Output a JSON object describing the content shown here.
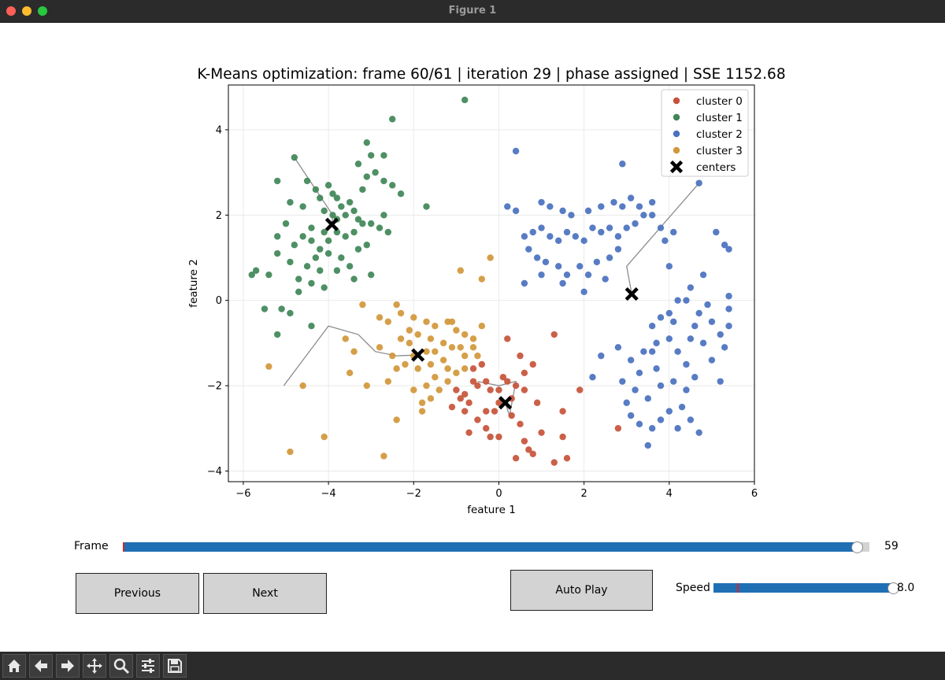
{
  "window": {
    "title": "Figure 1",
    "traffic_lights": {
      "close": "#ff5f57",
      "minimize": "#febc2e",
      "zoom": "#28c840"
    }
  },
  "chart_data": {
    "type": "scatter",
    "title": "K-Means optimization: frame 60/61 | iteration 29 | phase assigned | SSE 1152.68",
    "xlabel": "feature 1",
    "ylabel": "feature 2",
    "xlim": [
      -6.35,
      6.0
    ],
    "ylim": [
      -4.25,
      5.05
    ],
    "xticks": [
      -6,
      -4,
      -2,
      0,
      2,
      4,
      6
    ],
    "yticks": [
      -4,
      -2,
      0,
      2,
      4
    ],
    "grid": true,
    "legend_position": "top-right",
    "series": [
      {
        "name": "cluster 0",
        "color": "#c7523a",
        "points": [
          [
            0.2,
            -0.9
          ],
          [
            0.6,
            -1.7
          ],
          [
            0.8,
            -1.5
          ],
          [
            -0.4,
            -1.5
          ],
          [
            -0.6,
            -1.6
          ],
          [
            -0.3,
            -1.9
          ],
          [
            0.0,
            -2.1
          ],
          [
            0.2,
            -1.9
          ],
          [
            0.4,
            -2.0
          ],
          [
            -0.8,
            -2.2
          ],
          [
            -0.7,
            -2.4
          ],
          [
            -0.8,
            -2.6
          ],
          [
            -1.1,
            -2.5
          ],
          [
            -0.5,
            -2.8
          ],
          [
            -0.3,
            -3.0
          ],
          [
            -0.7,
            -3.1
          ],
          [
            -0.2,
            -3.2
          ],
          [
            0.0,
            -3.2
          ],
          [
            0.3,
            -2.7
          ],
          [
            0.5,
            -2.9
          ],
          [
            0.6,
            -3.3
          ],
          [
            0.7,
            -3.5
          ],
          [
            0.4,
            -3.7
          ],
          [
            0.8,
            -3.6
          ],
          [
            1.0,
            -3.1
          ],
          [
            1.3,
            -3.8
          ],
          [
            1.5,
            -3.2
          ],
          [
            1.6,
            -3.7
          ],
          [
            1.5,
            -2.6
          ],
          [
            1.3,
            -0.8
          ],
          [
            0.9,
            -2.4
          ],
          [
            0.6,
            -2.1
          ],
          [
            0.3,
            -2.3
          ],
          [
            -0.1,
            -2.6
          ],
          [
            -0.9,
            -2.3
          ],
          [
            -0.2,
            -2.1
          ],
          [
            0.1,
            -1.8
          ],
          [
            -0.5,
            -2.0
          ],
          [
            -1.0,
            -2.1
          ],
          [
            1.9,
            -2.1
          ],
          [
            2.8,
            -3.0
          ],
          [
            0.5,
            -1.3
          ],
          [
            0.0,
            -2.4
          ],
          [
            -0.3,
            -2.6
          ],
          [
            -0.6,
            -1.9
          ]
        ]
      },
      {
        "name": "cluster 1",
        "color": "#3f8757",
        "points": [
          [
            -0.8,
            4.7
          ],
          [
            -2.5,
            4.25
          ],
          [
            -2.7,
            3.4
          ],
          [
            -3.1,
            3.7
          ],
          [
            -3.0,
            3.4
          ],
          [
            -3.3,
            3.2
          ],
          [
            -3.1,
            2.9
          ],
          [
            -2.9,
            3.0
          ],
          [
            -2.7,
            2.8
          ],
          [
            -2.5,
            2.7
          ],
          [
            -2.3,
            2.5
          ],
          [
            -3.2,
            2.6
          ],
          [
            -4.8,
            3.35
          ],
          [
            -4.5,
            2.8
          ],
          [
            -4.3,
            2.6
          ],
          [
            -4.0,
            2.7
          ],
          [
            -3.8,
            2.4
          ],
          [
            -4.2,
            2.4
          ],
          [
            -4.1,
            2.1
          ],
          [
            -3.9,
            2.0
          ],
          [
            -3.7,
            2.2
          ],
          [
            -3.4,
            2.1
          ],
          [
            -3.6,
            2.0
          ],
          [
            -5.2,
            2.8
          ],
          [
            -4.9,
            2.3
          ],
          [
            -4.6,
            2.2
          ],
          [
            -5.0,
            1.8
          ],
          [
            -5.2,
            1.5
          ],
          [
            -4.8,
            1.3
          ],
          [
            -4.6,
            1.5
          ],
          [
            -4.4,
            1.4
          ],
          [
            -4.2,
            1.2
          ],
          [
            -4.0,
            1.4
          ],
          [
            -3.8,
            1.6
          ],
          [
            -3.6,
            1.5
          ],
          [
            -3.4,
            1.6
          ],
          [
            -3.2,
            1.8
          ],
          [
            -3.0,
            1.8
          ],
          [
            -2.8,
            1.7
          ],
          [
            -2.7,
            2.0
          ],
          [
            -2.6,
            1.6
          ],
          [
            -3.1,
            1.3
          ],
          [
            -3.3,
            1.2
          ],
          [
            -3.7,
            1.0
          ],
          [
            -4.0,
            1.1
          ],
          [
            -4.3,
            1.0
          ],
          [
            -4.5,
            0.8
          ],
          [
            -4.7,
            0.5
          ],
          [
            -4.2,
            0.7
          ],
          [
            -4.1,
            0.3
          ],
          [
            -3.8,
            0.7
          ],
          [
            -3.5,
            0.8
          ],
          [
            -3.4,
            0.5
          ],
          [
            -3.0,
            0.6
          ],
          [
            -4.4,
            0.4
          ],
          [
            -4.7,
            0.2
          ],
          [
            -4.9,
            0.9
          ],
          [
            -5.2,
            1.1
          ],
          [
            -5.4,
            0.6
          ],
          [
            -5.8,
            0.6
          ],
          [
            -5.7,
            0.7
          ],
          [
            -5.5,
            -0.2
          ],
          [
            -5.1,
            -0.2
          ],
          [
            -4.9,
            -0.3
          ],
          [
            -4.4,
            -0.6
          ],
          [
            -5.2,
            -0.8
          ],
          [
            -1.7,
            2.2
          ],
          [
            -3.5,
            2.3
          ],
          [
            -3.8,
            1.9
          ],
          [
            -4.1,
            1.6
          ],
          [
            -3.9,
            2.5
          ],
          [
            -4.4,
            1.7
          ],
          [
            -3.3,
            1.9
          ]
        ]
      },
      {
        "name": "cluster 2",
        "color": "#4a71bf",
        "points": [
          [
            0.4,
            3.5
          ],
          [
            2.9,
            3.2
          ],
          [
            0.2,
            2.2
          ],
          [
            0.4,
            2.1
          ],
          [
            1.0,
            2.3
          ],
          [
            1.2,
            2.2
          ],
          [
            1.5,
            2.1
          ],
          [
            1.7,
            2.0
          ],
          [
            2.1,
            2.1
          ],
          [
            2.4,
            2.2
          ],
          [
            2.7,
            2.3
          ],
          [
            2.9,
            2.2
          ],
          [
            3.1,
            2.4
          ],
          [
            3.3,
            2.2
          ],
          [
            3.6,
            2.3
          ],
          [
            3.4,
            2.0
          ],
          [
            3.6,
            2.0
          ],
          [
            3.2,
            1.8
          ],
          [
            3.0,
            1.7
          ],
          [
            2.8,
            1.5
          ],
          [
            2.6,
            1.7
          ],
          [
            2.4,
            1.6
          ],
          [
            2.2,
            1.7
          ],
          [
            2.0,
            1.4
          ],
          [
            1.8,
            1.5
          ],
          [
            1.6,
            1.6
          ],
          [
            1.4,
            1.4
          ],
          [
            1.2,
            1.5
          ],
          [
            1.0,
            1.7
          ],
          [
            0.8,
            1.6
          ],
          [
            0.6,
            1.5
          ],
          [
            0.7,
            1.2
          ],
          [
            0.9,
            1.0
          ],
          [
            1.1,
            0.9
          ],
          [
            1.4,
            0.8
          ],
          [
            1.6,
            0.6
          ],
          [
            1.9,
            0.8
          ],
          [
            2.1,
            0.6
          ],
          [
            2.3,
            0.9
          ],
          [
            2.6,
            1.0
          ],
          [
            2.8,
            1.2
          ],
          [
            2.5,
            0.5
          ],
          [
            2.0,
            0.2
          ],
          [
            1.5,
            0.4
          ],
          [
            1.0,
            0.6
          ],
          [
            0.6,
            0.4
          ],
          [
            3.8,
            1.7
          ],
          [
            3.9,
            1.4
          ],
          [
            4.1,
            1.6
          ],
          [
            4.0,
            0.8
          ],
          [
            4.7,
            2.75
          ],
          [
            5.1,
            1.6
          ],
          [
            5.3,
            1.3
          ],
          [
            5.4,
            1.2
          ],
          [
            4.8,
            0.6
          ],
          [
            4.5,
            0.3
          ],
          [
            4.2,
            0.0
          ],
          [
            4.0,
            -0.3
          ],
          [
            3.8,
            -0.4
          ],
          [
            3.6,
            -0.6
          ],
          [
            4.4,
            0.0
          ],
          [
            4.7,
            -0.3
          ],
          [
            5.0,
            -0.5
          ],
          [
            5.2,
            -0.8
          ],
          [
            5.4,
            -0.6
          ],
          [
            5.3,
            -1.1
          ],
          [
            4.8,
            -1.0
          ],
          [
            4.5,
            -0.9
          ],
          [
            4.2,
            -1.2
          ],
          [
            4.0,
            -0.9
          ],
          [
            3.7,
            -1.0
          ],
          [
            3.4,
            -1.2
          ],
          [
            3.1,
            -1.4
          ],
          [
            2.8,
            -1.1
          ],
          [
            2.4,
            -1.3
          ],
          [
            2.2,
            -1.8
          ],
          [
            2.9,
            -1.9
          ],
          [
            3.2,
            -2.1
          ],
          [
            3.5,
            -2.3
          ],
          [
            3.8,
            -2.0
          ],
          [
            4.1,
            -1.9
          ],
          [
            4.4,
            -2.1
          ],
          [
            4.6,
            -1.8
          ],
          [
            4.3,
            -2.5
          ],
          [
            4.5,
            -2.8
          ],
          [
            4.2,
            -3.0
          ],
          [
            4.0,
            -2.6
          ],
          [
            3.8,
            -2.8
          ],
          [
            3.6,
            -3.0
          ],
          [
            3.3,
            -2.9
          ],
          [
            3.1,
            -2.7
          ],
          [
            3.0,
            -2.4
          ],
          [
            4.7,
            -3.1
          ],
          [
            5.2,
            -1.9
          ],
          [
            5.0,
            -1.4
          ],
          [
            3.3,
            -1.7
          ],
          [
            3.7,
            -1.6
          ],
          [
            4.4,
            -1.5
          ],
          [
            3.5,
            -3.4
          ],
          [
            5.4,
            0.1
          ],
          [
            5.4,
            -0.2
          ],
          [
            4.9,
            -0.1
          ],
          [
            4.6,
            -0.6
          ],
          [
            3.6,
            -1.2
          ],
          [
            4.1,
            -0.5
          ]
        ]
      },
      {
        "name": "cluster 3",
        "color": "#d1973a",
        "points": [
          [
            -0.2,
            1.0
          ],
          [
            -0.9,
            0.7
          ],
          [
            -0.4,
            0.5
          ],
          [
            -3.2,
            -0.1
          ],
          [
            -2.4,
            -0.1
          ],
          [
            -2.3,
            -0.3
          ],
          [
            -2.0,
            -0.4
          ],
          [
            -1.7,
            -0.5
          ],
          [
            -1.5,
            -0.6
          ],
          [
            -1.2,
            -0.5
          ],
          [
            -1.0,
            -0.7
          ],
          [
            -0.8,
            -0.8
          ],
          [
            -0.6,
            -0.9
          ],
          [
            -0.4,
            -0.6
          ],
          [
            -2.8,
            -0.4
          ],
          [
            -2.6,
            -0.5
          ],
          [
            -2.3,
            -0.9
          ],
          [
            -2.1,
            -1.0
          ],
          [
            -1.9,
            -0.8
          ],
          [
            -1.6,
            -0.9
          ],
          [
            -1.3,
            -1.0
          ],
          [
            -1.1,
            -1.1
          ],
          [
            -0.8,
            -1.3
          ],
          [
            -0.5,
            -1.3
          ],
          [
            -2.8,
            -1.1
          ],
          [
            -2.5,
            -1.3
          ],
          [
            -2.2,
            -1.5
          ],
          [
            -1.9,
            -1.6
          ],
          [
            -1.6,
            -1.5
          ],
          [
            -1.3,
            -1.4
          ],
          [
            -1.0,
            -1.7
          ],
          [
            -0.8,
            -1.6
          ],
          [
            -1.5,
            -1.8
          ],
          [
            -1.7,
            -2.0
          ],
          [
            -2.0,
            -2.1
          ],
          [
            -1.4,
            -2.1
          ],
          [
            -1.2,
            -1.9
          ],
          [
            -1.8,
            -2.4
          ],
          [
            -1.6,
            -2.3
          ],
          [
            -1.8,
            -2.6
          ],
          [
            -2.4,
            -2.8
          ],
          [
            -3.6,
            -0.9
          ],
          [
            -3.4,
            -1.2
          ],
          [
            -3.5,
            -1.7
          ],
          [
            -3.1,
            -2.0
          ],
          [
            -4.1,
            -3.2
          ],
          [
            -4.9,
            -3.55
          ],
          [
            -2.7,
            -3.65
          ],
          [
            -4.6,
            -2.0
          ],
          [
            -5.4,
            -1.55
          ],
          [
            -2.0,
            -1.3
          ],
          [
            -1.7,
            -1.2
          ],
          [
            -2.4,
            -1.6
          ],
          [
            -0.9,
            -1.1
          ],
          [
            -1.5,
            -1.2
          ],
          [
            -1.2,
            -1.6
          ],
          [
            -2.6,
            -1.9
          ],
          [
            -1.1,
            -0.5
          ],
          [
            -0.6,
            -1.1
          ],
          [
            -2.1,
            -0.7
          ]
        ]
      }
    ],
    "centers": {
      "name": "centers",
      "color": "#000000",
      "points": [
        [
          -3.92,
          1.78
        ],
        [
          3.12,
          0.15
        ],
        [
          -1.9,
          -1.28
        ],
        [
          0.15,
          -2.4
        ]
      ]
    },
    "center_paths": [
      [
        [
          -4.8,
          3.35
        ],
        [
          -4.3,
          2.6
        ],
        [
          -3.9,
          2.0
        ],
        [
          -3.92,
          1.78
        ]
      ],
      [
        [
          4.7,
          2.75
        ],
        [
          3.0,
          0.8
        ],
        [
          3.12,
          0.15
        ]
      ],
      [
        [
          -5.05,
          -2.0
        ],
        [
          -4.0,
          -0.6
        ],
        [
          -3.3,
          -0.8
        ],
        [
          -3.1,
          -1.0
        ],
        [
          -2.9,
          -1.2
        ],
        [
          -2.4,
          -1.3
        ],
        [
          -1.9,
          -1.28
        ]
      ],
      [
        [
          -0.5,
          -1.9
        ],
        [
          0.0,
          -2.0
        ],
        [
          0.4,
          -1.9
        ],
        [
          0.25,
          -2.7
        ],
        [
          0.15,
          -2.4
        ]
      ]
    ]
  },
  "controls": {
    "frame": {
      "label": "Frame",
      "value": 59,
      "value_text": "59",
      "min": 0,
      "max": 60
    },
    "speed": {
      "label": "Speed",
      "value": 8.0,
      "value_text": "8.0",
      "min": 0.5,
      "max": 8.0,
      "initial": 1.5
    },
    "buttons": {
      "previous": "Previous",
      "next": "Next",
      "autoplay": "Auto Play"
    }
  },
  "toolbar": {
    "icons": [
      "home-icon",
      "back-arrow-icon",
      "forward-arrow-icon",
      "pan-icon",
      "zoom-icon",
      "configure-subplots-icon",
      "save-icon"
    ]
  }
}
